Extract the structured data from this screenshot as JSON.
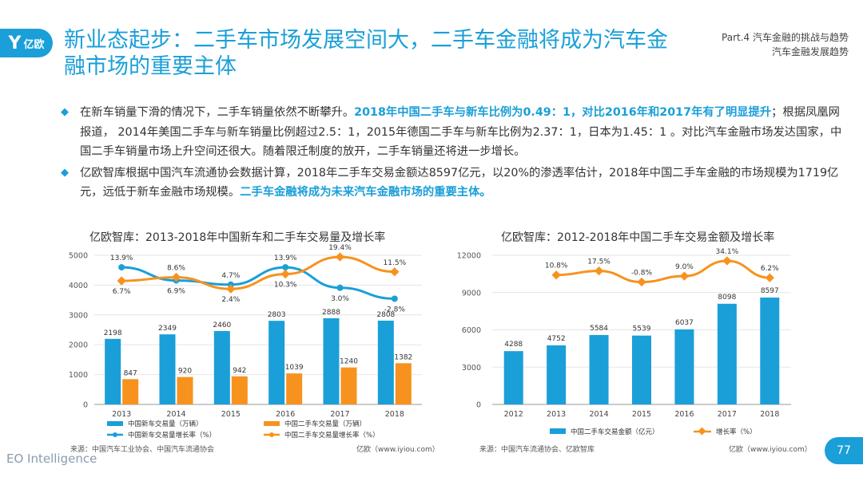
{
  "brand": {
    "logo_mark": "Y",
    "logo_text": "亿欧",
    "footer": "EO Intelligence"
  },
  "title": "新业态起步：二手车市场发展空间大，二手车金融将成为汽车金融市场的重要主体",
  "part": {
    "line1": "Part.4 汽车金融的挑战与趋势",
    "line2": "汽车金融发展趋势"
  },
  "bullets": [
    {
      "icon": "diamond-icon",
      "parts": [
        {
          "text": "在新车销量下滑的情况下，二手车销量依然不断攀升。",
          "hl": false
        },
        {
          "text": "2018年中国二手车与新车比例为0.49：1，对比2016年和2017年有了明显提升",
          "hl": true
        },
        {
          "text": "；根据凤凰网报道， 2014年美国二手车与新车销量比例超过2.5：1，2015年德国二手车与新车比例为2.37：1，日本为1.45：1 。对比汽车金融市场发达国家，中国二手车销量市场上升空间还很大。随着限迁制度的放开，二手车销量还将进一步增长。",
          "hl": false
        }
      ]
    },
    {
      "icon": "diamond-icon",
      "parts": [
        {
          "text": "亿欧智库根据中国汽车流通协会数据计算，2018年二手车交易金额达8597亿元，以20%的渗透率估计，2018年中国二手车金融的市场规模为1719亿元，远低于新车金融市场规模。",
          "hl": false
        },
        {
          "text": "二手车金融将成为未来汽车金融市场的重要主体。",
          "hl": true
        }
      ]
    }
  ],
  "page_number": "77",
  "colors": {
    "blue": "#1a9fd8",
    "orange": "#f7921e",
    "grid": "#e6e6e6",
    "axis": "#999999"
  },
  "chart_data": [
    {
      "type": "bar",
      "title": "亿欧智库：2013-2018年中国新车和二手车交易量及增长率",
      "categories": [
        "2013",
        "2014",
        "2015",
        "2016",
        "2017",
        "2018"
      ],
      "ylim": [
        0,
        5000
      ],
      "yticks": [
        "0",
        "1000",
        "2000",
        "3000",
        "4000",
        "5000"
      ],
      "series": [
        {
          "name": "中国新车交易量（万辆）",
          "kind": "bar",
          "color": "#1a9fd8",
          "values": [
            2198,
            2349,
            2460,
            2803,
            2888,
            2808
          ]
        },
        {
          "name": "中国二手车交易量（万辆）",
          "kind": "bar",
          "color": "#f7921e",
          "values": [
            847,
            920,
            942,
            1039,
            1240,
            1382
          ]
        },
        {
          "name": "中国新车交易量增长率（%）",
          "kind": "line",
          "color": "#1a9fd8",
          "values": [
            13.9,
            6.9,
            4.7,
            13.9,
            3.0,
            -2.8
          ],
          "labels": [
            "13.9%",
            "6.9%",
            "4.7%",
            "13.9%",
            "3.0%",
            "-2.8%"
          ]
        },
        {
          "name": "中国二手车交易量增长率（%）",
          "kind": "line",
          "color": "#f7921e",
          "values": [
            6.7,
            8.6,
            2.4,
            10.3,
            19.4,
            11.5
          ],
          "labels": [
            "6.7%",
            "8.6%",
            "2.4%",
            "10.3%",
            "19.4%",
            "11.5%"
          ]
        }
      ],
      "source": "来源：中国汽车工业协会、中国汽车流通协会",
      "credit": "亿欧（www.iyiou.com）"
    },
    {
      "type": "bar",
      "title": "亿欧智库：2012-2018年中国二手车交易金额及增长率",
      "categories": [
        "2012",
        "2013",
        "2014",
        "2015",
        "2016",
        "2017",
        "2018"
      ],
      "ylim": [
        0,
        12000
      ],
      "yticks": [
        "0",
        "3000",
        "6000",
        "9000",
        "12000"
      ],
      "series": [
        {
          "name": "中国二手车交易金额（亿元）",
          "kind": "bar",
          "color": "#1a9fd8",
          "values": [
            4288,
            4752,
            5584,
            5539,
            6037,
            8098,
            8597
          ]
        },
        {
          "name": "增长率（%）",
          "kind": "line",
          "color": "#f7921e",
          "values": [
            null,
            10.8,
            17.5,
            -0.8,
            9.0,
            34.1,
            6.2
          ],
          "labels": [
            "",
            "10.8%",
            "17.5%",
            "-0.8%",
            "9.0%",
            "34.1%",
            "6.2%"
          ]
        }
      ],
      "source": "来源：中国汽车流通协会、亿欧智库",
      "credit": "亿欧（www.iyiou.com）"
    }
  ]
}
